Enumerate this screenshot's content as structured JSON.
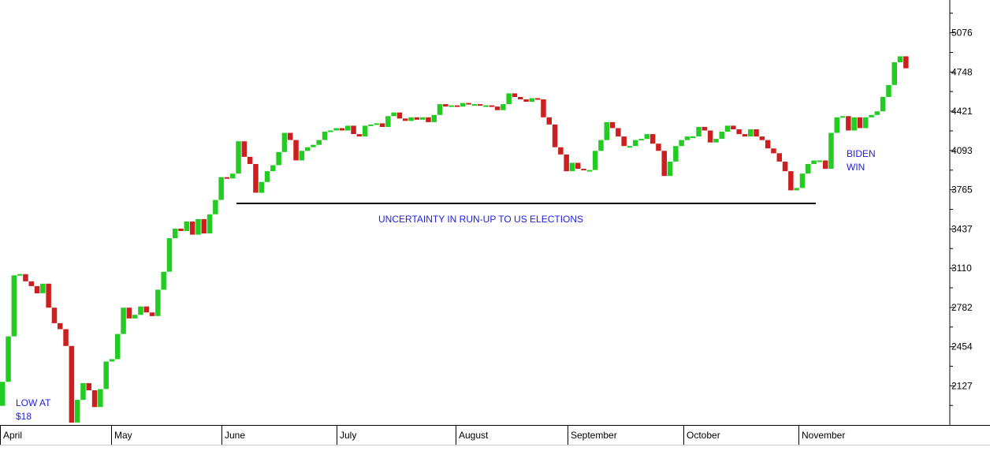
{
  "colors": {
    "up": "#22cc22",
    "down": "#cc2020",
    "annotation": "#2020dd",
    "axis": "#000000",
    "background": "#ffffff"
  },
  "chart_data": {
    "type": "candlestick",
    "ylim": [
      1800,
      5350
    ],
    "y_ticks": [
      2127,
      2454,
      2782,
      3110,
      3437,
      3765,
      4093,
      4421,
      4748,
      5076
    ],
    "x_ticks": [
      "April",
      "May",
      "June",
      "July",
      "August",
      "September",
      "October",
      "November"
    ],
    "grid": false,
    "closes": [
      2160,
      2540,
      3050,
      3060,
      3000,
      2960,
      2900,
      2980,
      2780,
      2650,
      2600,
      2460,
      1820,
      2010,
      2150,
      2090,
      1950,
      2100,
      2330,
      2350,
      2560,
      2780,
      2690,
      2720,
      2790,
      2740,
      2710,
      2930,
      3080,
      3360,
      3440,
      3420,
      3500,
      3390,
      3520,
      3400,
      3560,
      3680,
      3870,
      3860,
      3900,
      4170,
      4040,
      3980,
      3740,
      3830,
      3920,
      3970,
      4080,
      4240,
      4180,
      4010,
      4090,
      4120,
      4140,
      4180,
      4250,
      4260,
      4280,
      4260,
      4300,
      4230,
      4210,
      4300,
      4310,
      4320,
      4290,
      4380,
      4410,
      4360,
      4340,
      4370,
      4350,
      4370,
      4330,
      4390,
      4480,
      4460,
      4470,
      4460,
      4490,
      4480,
      4480,
      4470,
      4470,
      4460,
      4430,
      4480,
      4570,
      4540,
      4520,
      4500,
      4530,
      4520,
      4370,
      4310,
      4120,
      4060,
      3920,
      3990,
      3940,
      3930,
      3930,
      4090,
      4180,
      4330,
      4280,
      4210,
      4130,
      4130,
      4180,
      4190,
      4230,
      4150,
      4090,
      3880,
      4000,
      4130,
      4180,
      4210,
      4210,
      4290,
      4260,
      4160,
      4190,
      4250,
      4300,
      4270,
      4230,
      4210,
      4270,
      4210,
      4180,
      4110,
      4070,
      4000,
      3920,
      3760,
      3780,
      3900,
      3980,
      4010,
      4010,
      3940,
      4240,
      4370,
      4380,
      4260,
      4370,
      4280,
      4370,
      4390,
      4420,
      4540,
      4640,
      4830,
      4880,
      4780
    ]
  },
  "annotations": {
    "low": [
      "LOW AT",
      "$18"
    ],
    "biden": [
      "BIDEN",
      "WIN"
    ],
    "uncertainty": "UNCERTAINTY IN RUN-UP TO US ELECTIONS"
  }
}
